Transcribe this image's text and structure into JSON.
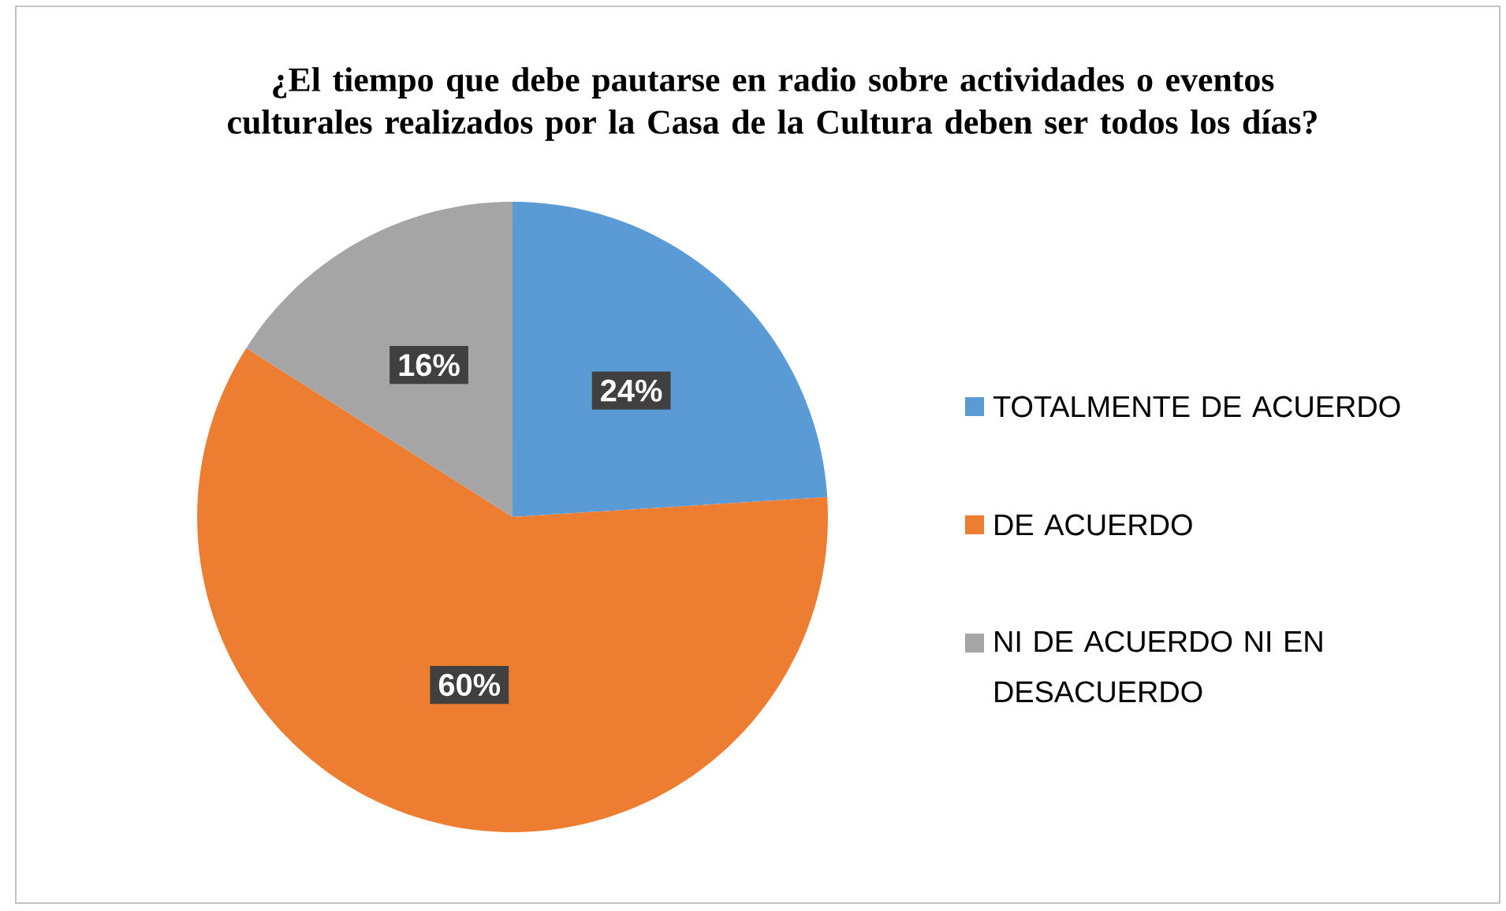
{
  "chart_data": {
    "type": "pie",
    "title": "¿El tiempo que debe pautarse en radio sobre actividades o eventos culturales realizados por la Casa de la Cultura deben ser todos los días?",
    "categories": [
      "TOTALMENTE DE ACUERDO",
      "DE ACUERDO",
      "NI DE ACUERDO NI EN DESACUERDO"
    ],
    "values": [
      24,
      60,
      16
    ],
    "colors": [
      "#5b9bd5",
      "#ed7d31",
      "#a5a5a5"
    ],
    "value_labels": [
      "24%",
      "60%",
      "16%"
    ],
    "legend": "right"
  }
}
